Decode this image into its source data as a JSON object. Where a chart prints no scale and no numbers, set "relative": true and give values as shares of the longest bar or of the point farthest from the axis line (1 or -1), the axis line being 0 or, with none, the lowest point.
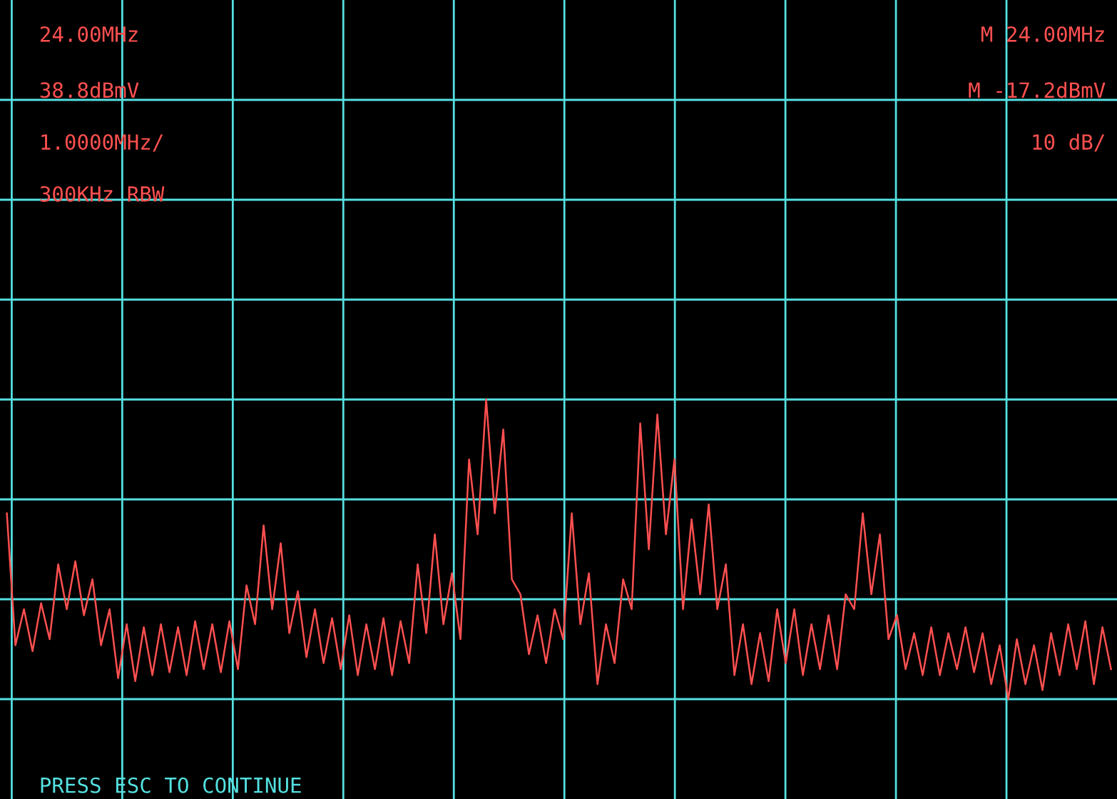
{
  "chart_data": {
    "type": "line",
    "relative": true,
    "grid": true,
    "tick_labels": false,
    "marker": "none",
    "categories": [
      null,
      null,
      null,
      null,
      null,
      null,
      null,
      null,
      null,
      null,
      null,
      null,
      null,
      null,
      null,
      null,
      null,
      null,
      null,
      null,
      null,
      null,
      null,
      null,
      null,
      null,
      null,
      null,
      null,
      null,
      null,
      null,
      null,
      null,
      null,
      null,
      null,
      null,
      null,
      null,
      null,
      null,
      null,
      null,
      null,
      null,
      null,
      null,
      null,
      null,
      null,
      null,
      null,
      null,
      null,
      null,
      null,
      null,
      null,
      null,
      null,
      null,
      null,
      null,
      null,
      null,
      null,
      null,
      null,
      null,
      null,
      null,
      null,
      null,
      null,
      null,
      null,
      null,
      null,
      null,
      null,
      null,
      null,
      null,
      null,
      null,
      null,
      null,
      null,
      null,
      null,
      null,
      null,
      null,
      null,
      null,
      null,
      null,
      null,
      null,
      null,
      null,
      null,
      null,
      null,
      null,
      null,
      null,
      null,
      null,
      null,
      null,
      null,
      null,
      null,
      null,
      null,
      null,
      null,
      null,
      null,
      null,
      null,
      null,
      null,
      null,
      null,
      null,
      null,
      null
    ],
    "series": [
      {
        "color": "#ff5050",
        "values": [
          0.62,
          0.18,
          0.3,
          0.16,
          0.32,
          0.2,
          0.45,
          0.3,
          0.46,
          0.28,
          0.4,
          0.18,
          0.3,
          0.07,
          0.25,
          0.06,
          0.24,
          0.08,
          0.25,
          0.09,
          0.24,
          0.08,
          0.26,
          0.1,
          0.25,
          0.09,
          0.26,
          0.1,
          0.38,
          0.25,
          0.58,
          0.3,
          0.52,
          0.22,
          0.36,
          0.14,
          0.3,
          0.12,
          0.27,
          0.1,
          0.28,
          0.08,
          0.25,
          0.1,
          0.27,
          0.08,
          0.26,
          0.12,
          0.45,
          0.22,
          0.55,
          0.25,
          0.42,
          0.2,
          0.8,
          0.55,
          1.0,
          0.62,
          0.9,
          0.4,
          0.35,
          0.15,
          0.28,
          0.12,
          0.3,
          0.2,
          0.62,
          0.25,
          0.42,
          0.05,
          0.25,
          0.12,
          0.4,
          0.3,
          0.92,
          0.5,
          0.95,
          0.55,
          0.8,
          0.3,
          0.6,
          0.35,
          0.65,
          0.3,
          0.45,
          0.08,
          0.25,
          0.05,
          0.22,
          0.06,
          0.3,
          0.12,
          0.3,
          0.08,
          0.25,
          0.1,
          0.28,
          0.1,
          0.35,
          0.3,
          0.62,
          0.35,
          0.55,
          0.2,
          0.28,
          0.1,
          0.22,
          0.08,
          0.24,
          0.08,
          0.22,
          0.1,
          0.24,
          0.09,
          0.22,
          0.05,
          0.18,
          0.0,
          0.2,
          0.05,
          0.18,
          0.03,
          0.22,
          0.08,
          0.25,
          0.1,
          0.26,
          0.05,
          0.24,
          0.1
        ]
      }
    ],
    "annotations": [
      "24.00MHz",
      "38.8dBmV",
      "1.0000MHz/",
      "300KHz RBW",
      "M 24.00MHz",
      "M -17.2dBmV",
      "10 dB/",
      "PRESS ESC TO CONTINUE"
    ]
  }
}
